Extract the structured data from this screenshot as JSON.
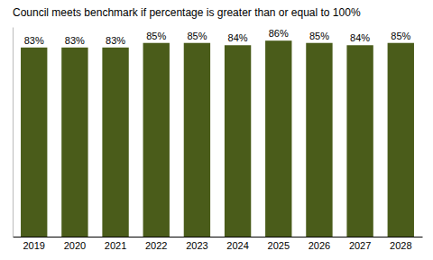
{
  "chart_data": {
    "type": "bar",
    "title": "Council meets benchmark if percentage is greater than or equal to 100%",
    "categories": [
      "2019",
      "2020",
      "2021",
      "2022",
      "2023",
      "2024",
      "2025",
      "2026",
      "2027",
      "2028"
    ],
    "values": [
      83,
      83,
      83,
      85,
      85,
      84,
      86,
      85,
      84,
      85
    ],
    "value_labels": [
      "83%",
      "83%",
      "83%",
      "85%",
      "85%",
      "84%",
      "86%",
      "85%",
      "84%",
      "85%"
    ],
    "color": "#4a5c1a",
    "ylim": [
      0,
      92
    ],
    "data_labels": true,
    "tick_labels": "x"
  }
}
